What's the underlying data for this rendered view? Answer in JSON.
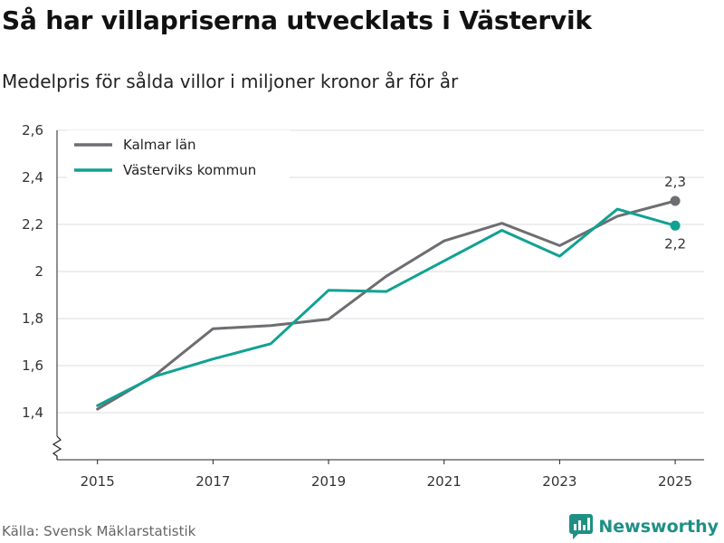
{
  "header": {
    "title": "Så har villapriserna utvecklats i Västervik",
    "subtitle": "Medelpris för sålda villor i miljoner kronor år för år"
  },
  "footer": {
    "source": "Källa: Svensk Mäklarstatistik",
    "brand": "Newsworthy"
  },
  "colors": {
    "kalmar": "#6e6d72",
    "vastervik": "#11a193",
    "grid": "#dddddd",
    "axis": "#222222",
    "brand": "#1f8f86"
  },
  "chart_data": {
    "type": "line",
    "title": "Så har villapriserna utvecklats i Västervik",
    "subtitle": "Medelpris för sålda villor i miljoner kronor år för år",
    "xlabel": "",
    "ylabel": "",
    "x": [
      2015,
      2016,
      2017,
      2018,
      2019,
      2020,
      2021,
      2022,
      2023,
      2024,
      2025
    ],
    "xticks": [
      "2015",
      "2017",
      "2019",
      "2021",
      "2023",
      "2025"
    ],
    "yticks": [
      "1,4",
      "1,6",
      "1,8",
      "2",
      "2,2",
      "2,4",
      "2,6"
    ],
    "ytick_values": [
      1.4,
      1.6,
      1.8,
      2.0,
      2.2,
      2.4,
      2.6
    ],
    "xlim": [
      2014.3,
      2025.5
    ],
    "ylim": [
      1.2,
      2.6
    ],
    "grid": true,
    "axis_break": true,
    "legend_position": "top-left",
    "series": [
      {
        "name": "Kalmar län",
        "values": [
          1.415,
          1.56,
          1.757,
          1.77,
          1.797,
          1.98,
          2.13,
          2.205,
          2.11,
          2.235,
          2.3
        ],
        "end_label": "2,3"
      },
      {
        "name": "Västerviks kommun",
        "values": [
          1.43,
          1.555,
          1.628,
          1.693,
          1.92,
          1.915,
          2.045,
          2.175,
          2.065,
          2.265,
          2.195
        ],
        "end_label": "2,2"
      }
    ]
  }
}
